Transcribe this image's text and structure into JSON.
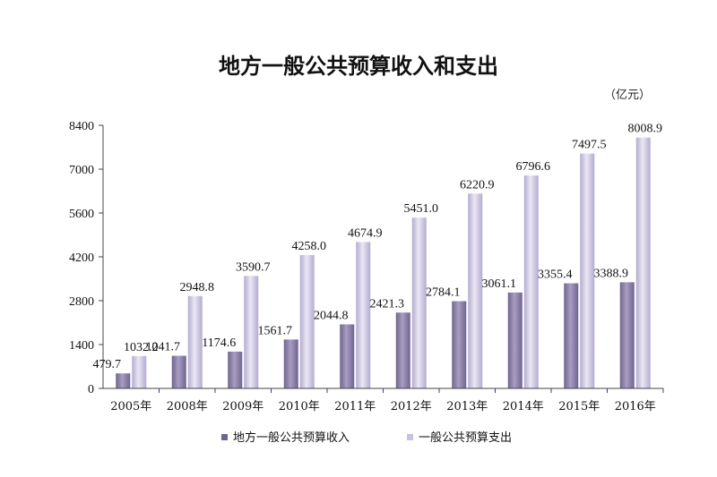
{
  "chart_data": {
    "type": "bar",
    "title": "地方一般公共预算收入和支出",
    "unit": "（亿元）",
    "categories": [
      "2005年",
      "2008年",
      "2009年",
      "2010年",
      "2011年",
      "2012年",
      "2013年",
      "2014年",
      "2015年",
      "2016年"
    ],
    "series": [
      {
        "name": "地方一般公共预算收入",
        "color": "#8a7fa3",
        "values": [
          479.7,
          1041.7,
          1174.6,
          1561.7,
          2044.8,
          2421.3,
          2784.1,
          3061.1,
          3355.4,
          3388.9
        ],
        "labels": [
          "479.7",
          "1041.7",
          "1174.6",
          "1561.7",
          "2044.8",
          "2421.3",
          "2784.1",
          "3061.1",
          "3355.4",
          "3388.9"
        ]
      },
      {
        "name": "一般公共预算支出",
        "color": "#c9c2dc",
        "values": [
          1032.2,
          2948.8,
          3590.7,
          4258.0,
          4674.9,
          5451.0,
          6220.9,
          6796.6,
          7497.5,
          8008.9
        ],
        "labels": [
          "1032.2",
          "2948.8",
          "3590.7",
          "4258.0",
          "4674.9",
          "5451.0",
          "6220.9",
          "6796.6",
          "7497.5",
          "8008.9"
        ]
      }
    ],
    "yticks": [
      0,
      1400,
      2800,
      4200,
      5600,
      7000,
      8400
    ],
    "ylim": [
      0,
      8400
    ],
    "grid": false,
    "legend": "bottom"
  }
}
